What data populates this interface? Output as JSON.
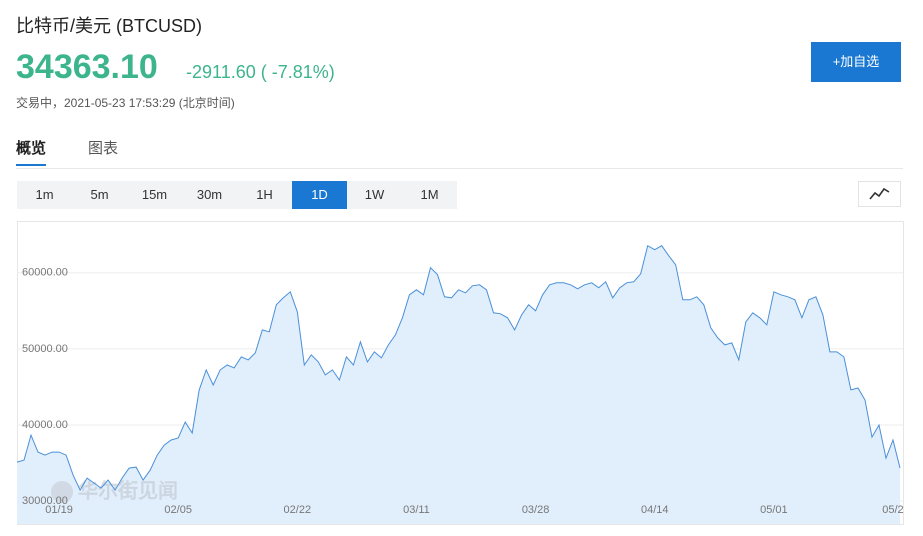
{
  "header": {
    "title": "比特币/美元 (BTCUSD)",
    "price": "34363.10",
    "change": "-2911.60 ( -7.81%)",
    "status": "交易中，2021-05-23 17:53:29 (北京时间)",
    "button": "+加自选"
  },
  "tabs": [
    "概览",
    "图表"
  ],
  "ranges": [
    "1m",
    "5m",
    "15m",
    "30m",
    "1H",
    "1D",
    "1W",
    "1M"
  ],
  "chart_data": {
    "type": "area",
    "watermark": "华尔街见闻",
    "color": "#4a90d9",
    "fill": "#e1eefb",
    "grid": true,
    "categories": [
      null,
      null,
      null,
      null,
      null,
      null,
      "01/19",
      null,
      null,
      null,
      null,
      null,
      null,
      null,
      null,
      null,
      null,
      null,
      null,
      null,
      null,
      null,
      null,
      "02/05",
      null,
      null,
      null,
      null,
      null,
      null,
      null,
      null,
      null,
      null,
      null,
      null,
      null,
      null,
      null,
      null,
      "02/22",
      null,
      null,
      null,
      null,
      null,
      null,
      null,
      null,
      null,
      null,
      null,
      null,
      null,
      null,
      null,
      null,
      "03/11",
      null,
      null,
      null,
      null,
      null,
      null,
      null,
      null,
      null,
      null,
      null,
      null,
      null,
      null,
      null,
      null,
      "03/28",
      null,
      null,
      null,
      null,
      null,
      null,
      null,
      null,
      null,
      null,
      null,
      null,
      null,
      null,
      null,
      null,
      "04/14",
      null,
      null,
      null,
      null,
      null,
      null,
      null,
      null,
      null,
      null,
      null,
      null,
      null,
      null,
      null,
      null,
      "05/01",
      null,
      null,
      null,
      null,
      null,
      null,
      null,
      null,
      null,
      null,
      null,
      null,
      null,
      null,
      null,
      null,
      "05/2",
      null
    ],
    "values": [
      35130,
      35400,
      38680,
      36450,
      36050,
      36450,
      36450,
      36050,
      33420,
      31450,
      33030,
      32370,
      31710,
      32760,
      31450,
      33030,
      34340,
      34470,
      32760,
      34080,
      36050,
      37370,
      38030,
      38290,
      40390,
      38950,
      44610,
      47240,
      45260,
      47240,
      47890,
      47500,
      48950,
      48550,
      49470,
      52500,
      52240,
      55790,
      56710,
      57500,
      54870,
      47890,
      49210,
      48290,
      46580,
      47240,
      45920,
      48950,
      47890,
      50920,
      48290,
      49610,
      48820,
      50530,
      51840,
      54080,
      57110,
      57760,
      57110,
      60660,
      59740,
      56840,
      56710,
      57760,
      57370,
      58290,
      58420,
      57760,
      54740,
      54610,
      54080,
      52500,
      54470,
      55790,
      55000,
      57110,
      58420,
      58680,
      58680,
      58420,
      57890,
      58420,
      58680,
      58030,
      58820,
      56710,
      58030,
      58680,
      58820,
      59870,
      63550,
      63030,
      63550,
      62240,
      61050,
      56450,
      56450,
      56840,
      55790,
      52760,
      51450,
      50530,
      50790,
      48550,
      53550,
      54740,
      54080,
      53160,
      57500,
      57110,
      56840,
      56450,
      54080,
      56450,
      56840,
      54470,
      49610,
      49610,
      48950,
      44610,
      44870,
      43290,
      38420,
      40000,
      35660,
      38030,
      34360
    ],
    "ylim": [
      27000,
      66800
    ],
    "yticks": [
      {
        "value": 30000,
        "label": "30000.00"
      },
      {
        "value": 40000,
        "label": "40000.00"
      },
      {
        "value": 50000,
        "label": "50000.00"
      },
      {
        "value": 60000,
        "label": "60000.00"
      }
    ]
  }
}
